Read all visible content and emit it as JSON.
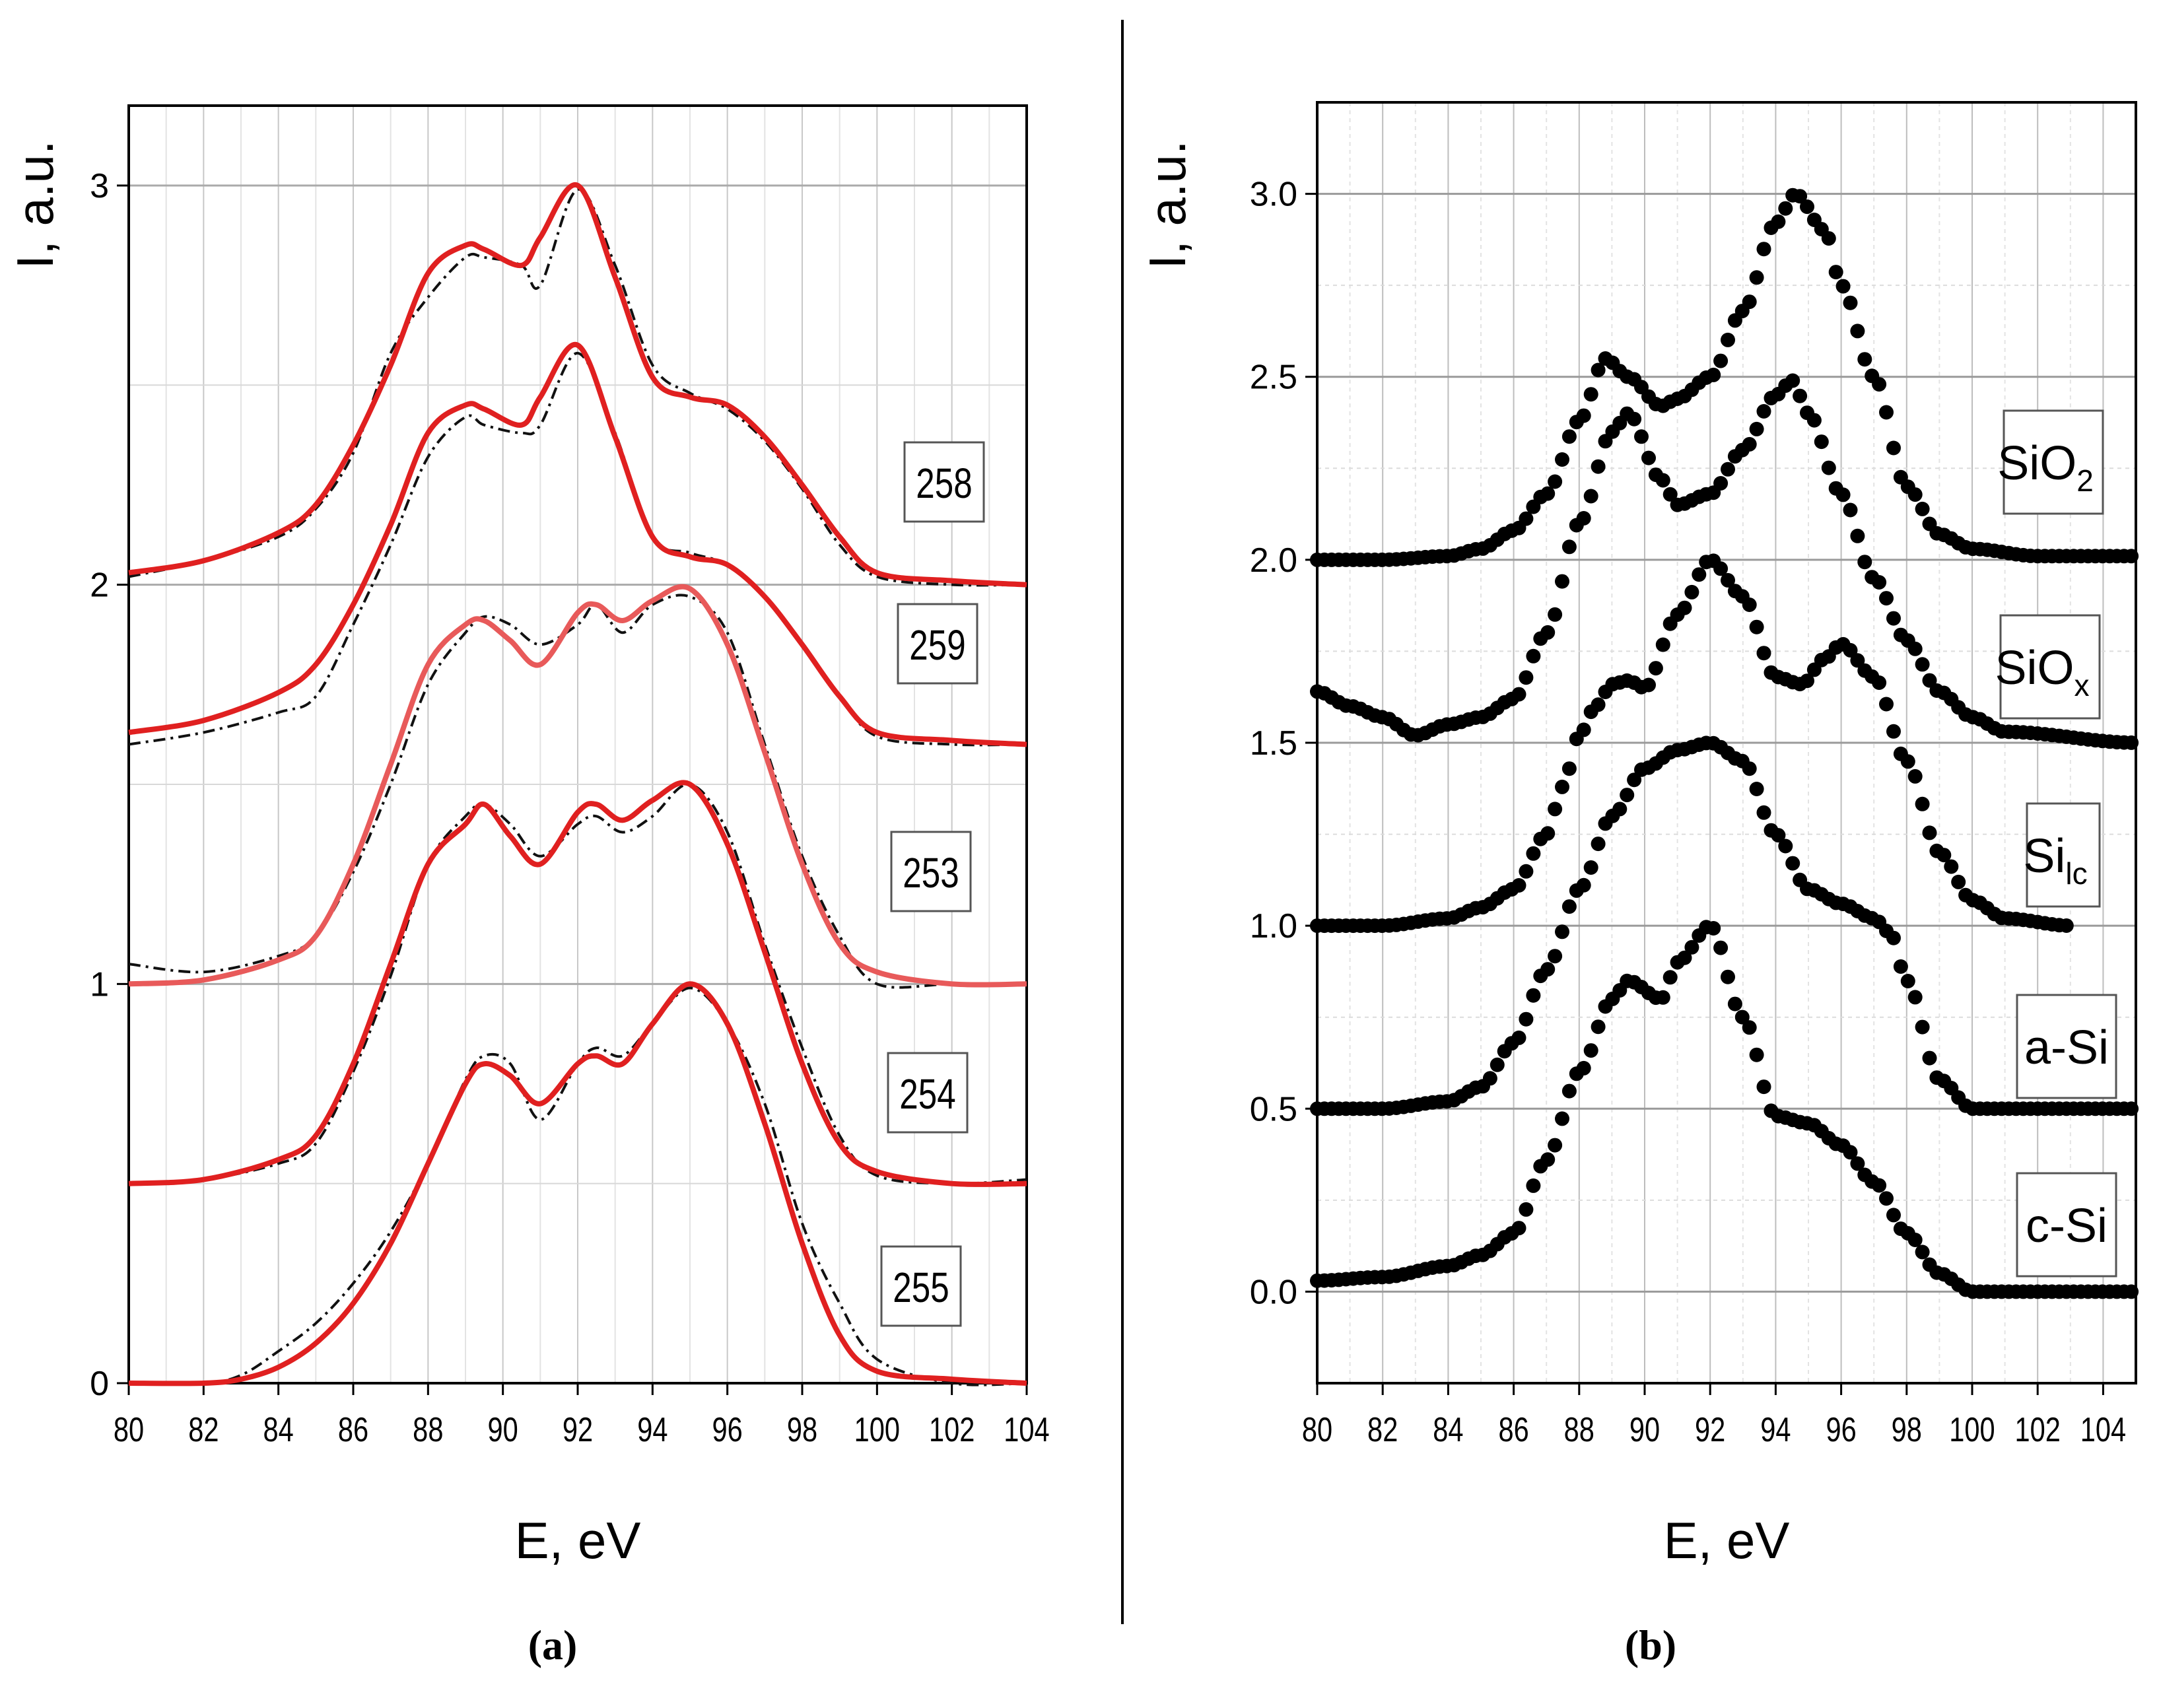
{
  "colors": {
    "fit": "#e02020",
    "fit_light": "#e85a5a",
    "exp": "#111111",
    "ref": "#000000",
    "grid": "#c8c8c8",
    "axis": "#000000"
  },
  "chart_data": [
    {
      "panel": "a",
      "type": "line",
      "xlabel": "E, eV",
      "ylabel": "I, a.u.",
      "xlim": [
        80,
        104
      ],
      "ylim": [
        0,
        3.2
      ],
      "xticks": [
        "80",
        "82",
        "84",
        "86",
        "88",
        "90",
        "92",
        "94",
        "96",
        "98",
        "100",
        "102",
        "104"
      ],
      "yticks": [
        "0",
        "1",
        "2",
        "3"
      ],
      "grid": true,
      "legend": "labels in boxes at right of each curve",
      "series": [
        {
          "name": "258",
          "offset": 2.0,
          "x": [
            80,
            82,
            84,
            85,
            86,
            87,
            88,
            89,
            89.5,
            90.5,
            91,
            92,
            93,
            94,
            95,
            96,
            97,
            98,
            99,
            100,
            102,
            104
          ],
          "fit": [
            0.03,
            0.06,
            0.13,
            0.2,
            0.35,
            0.55,
            0.78,
            0.85,
            0.84,
            0.8,
            0.87,
            1.0,
            0.77,
            0.52,
            0.47,
            0.45,
            0.37,
            0.25,
            0.12,
            0.03,
            0.01,
            0.0
          ],
          "exp": [
            0.02,
            0.06,
            0.12,
            0.19,
            0.33,
            0.58,
            0.72,
            0.82,
            0.82,
            0.8,
            0.75,
            0.99,
            0.8,
            0.55,
            0.48,
            0.44,
            0.36,
            0.24,
            0.1,
            0.02,
            0.0,
            0.0
          ]
        },
        {
          "name": "259",
          "offset": 1.6,
          "x": [
            80,
            82,
            84,
            85,
            86,
            87,
            88,
            89,
            89.5,
            90.5,
            91,
            92,
            93,
            94,
            95,
            96,
            97,
            98,
            99,
            100,
            102,
            104
          ],
          "fit": [
            0.03,
            0.06,
            0.13,
            0.2,
            0.35,
            0.55,
            0.78,
            0.85,
            0.84,
            0.8,
            0.87,
            1.0,
            0.77,
            0.52,
            0.47,
            0.45,
            0.37,
            0.25,
            0.12,
            0.03,
            0.01,
            0.0
          ],
          "exp": [
            0.0,
            0.03,
            0.08,
            0.12,
            0.3,
            0.5,
            0.72,
            0.82,
            0.8,
            0.78,
            0.8,
            0.98,
            0.78,
            0.52,
            0.48,
            0.45,
            0.37,
            0.25,
            0.12,
            0.02,
            0.0,
            0.0
          ]
        },
        {
          "name": "253",
          "offset": 1.0,
          "x": [
            80,
            82,
            84,
            85,
            86,
            87,
            88,
            89,
            89.5,
            90.2,
            91,
            92,
            92.5,
            93.2,
            94,
            95,
            96,
            97,
            98,
            99,
            100,
            102,
            104
          ],
          "fit": [
            0.0,
            0.01,
            0.06,
            0.12,
            0.3,
            0.55,
            0.8,
            0.9,
            0.91,
            0.86,
            0.8,
            0.93,
            0.95,
            0.91,
            0.96,
            0.99,
            0.85,
            0.58,
            0.3,
            0.1,
            0.03,
            0.0,
            0.0
          ],
          "exp": [
            0.05,
            0.03,
            0.07,
            0.12,
            0.28,
            0.5,
            0.75,
            0.88,
            0.92,
            0.9,
            0.85,
            0.9,
            0.95,
            0.88,
            0.95,
            0.97,
            0.88,
            0.6,
            0.32,
            0.12,
            0.0,
            0.0,
            0.0
          ]
        },
        {
          "name": "254",
          "offset": 0.5,
          "x": [
            80,
            82,
            84,
            85,
            86,
            87,
            88,
            89,
            89.5,
            90.2,
            91,
            92,
            92.5,
            93.2,
            94,
            95,
            96,
            97,
            98,
            99,
            100,
            102,
            104
          ],
          "fit": [
            0.0,
            0.01,
            0.06,
            0.12,
            0.3,
            0.55,
            0.8,
            0.9,
            0.95,
            0.87,
            0.8,
            0.93,
            0.95,
            0.91,
            0.96,
            1.0,
            0.85,
            0.58,
            0.3,
            0.1,
            0.03,
            0.0,
            0.0
          ],
          "exp": [
            0.0,
            0.01,
            0.05,
            0.1,
            0.28,
            0.52,
            0.8,
            0.92,
            0.95,
            0.9,
            0.82,
            0.9,
            0.92,
            0.88,
            0.92,
            1.0,
            0.88,
            0.6,
            0.34,
            0.12,
            0.02,
            0.0,
            0.01
          ]
        },
        {
          "name": "255",
          "offset": 0.0,
          "x": [
            80,
            82,
            83,
            84,
            85,
            86,
            87,
            88,
            89,
            89.5,
            90.2,
            91,
            92,
            92.5,
            93.2,
            94,
            95,
            96,
            97,
            98,
            99,
            100,
            102,
            104
          ],
          "fit": [
            0.0,
            0.0,
            0.01,
            0.04,
            0.1,
            0.2,
            0.35,
            0.55,
            0.75,
            0.8,
            0.77,
            0.7,
            0.8,
            0.82,
            0.8,
            0.9,
            1.0,
            0.9,
            0.65,
            0.35,
            0.12,
            0.03,
            0.01,
            0.0
          ],
          "exp": [
            0.0,
            0.0,
            0.02,
            0.08,
            0.15,
            0.25,
            0.38,
            0.55,
            0.76,
            0.82,
            0.8,
            0.66,
            0.8,
            0.84,
            0.82,
            0.9,
            0.99,
            0.9,
            0.7,
            0.4,
            0.2,
            0.06,
            0.0,
            0.0
          ]
        }
      ]
    },
    {
      "panel": "b",
      "type": "scatter",
      "xlabel": "E, eV",
      "ylabel": "I, a.u.",
      "xlim": [
        80,
        105
      ],
      "ylim": [
        -0.25,
        3.25
      ],
      "xticks": [
        "80",
        "82",
        "84",
        "86",
        "88",
        "90",
        "92",
        "94",
        "96",
        "98",
        "100",
        "102",
        "104"
      ],
      "yticks": [
        "0.0",
        "0.5",
        "1.0",
        "1.5",
        "2.0",
        "2.5",
        "3.0"
      ],
      "grid": true,
      "legend": "labels in boxes at right of each curve",
      "series": [
        {
          "name": "SiO",
          "subscript": "2",
          "offset": 2.0,
          "x": [
            80,
            82,
            84,
            85,
            86,
            87,
            88,
            88.8,
            89.5,
            90.5,
            91,
            92,
            93,
            94,
            94.6,
            95.5,
            96,
            97,
            98,
            99,
            100,
            102,
            105
          ],
          "y": [
            0.0,
            0.0,
            0.01,
            0.03,
            0.08,
            0.18,
            0.38,
            0.55,
            0.5,
            0.42,
            0.44,
            0.5,
            0.68,
            0.92,
            1.0,
            0.9,
            0.75,
            0.5,
            0.2,
            0.07,
            0.03,
            0.01,
            0.01
          ]
        },
        {
          "name": "SiO",
          "subscript": "x",
          "offset": 1.5,
          "x": [
            80,
            81,
            82,
            83,
            84,
            85,
            86,
            87,
            88,
            89,
            89.5,
            90.5,
            91,
            92,
            93,
            94,
            94.5,
            95,
            96,
            97,
            98,
            99,
            100,
            101,
            105
          ],
          "y": [
            0.14,
            0.1,
            0.07,
            0.02,
            0.05,
            0.07,
            0.12,
            0.3,
            0.6,
            0.85,
            0.9,
            0.72,
            0.65,
            0.68,
            0.8,
            0.95,
            0.99,
            0.9,
            0.68,
            0.45,
            0.28,
            0.14,
            0.07,
            0.03,
            0.0
          ]
        },
        {
          "name": "Si",
          "subscript": "lc",
          "offset": 1.0,
          "x": [
            80,
            82,
            84,
            85,
            86,
            87,
            87.5,
            88,
            88.5,
            89,
            89.5,
            90,
            91,
            92,
            93,
            94,
            94.8,
            95.5,
            96,
            97,
            98,
            99,
            100,
            101,
            103
          ],
          "y": [
            0.0,
            0.0,
            0.02,
            0.05,
            0.1,
            0.25,
            0.38,
            0.52,
            0.6,
            0.66,
            0.67,
            0.65,
            0.85,
            1.0,
            0.9,
            0.68,
            0.66,
            0.73,
            0.77,
            0.68,
            0.45,
            0.2,
            0.07,
            0.02,
            0.0
          ]
        },
        {
          "name": "a-Si",
          "subscript": "",
          "offset": 0.5,
          "x": [
            80,
            82,
            84,
            85,
            86,
            87,
            88,
            89,
            90,
            91,
            92,
            93,
            94,
            95,
            96,
            97,
            97.5,
            98,
            99,
            100,
            101,
            105
          ],
          "y": [
            0.0,
            0.0,
            0.02,
            0.06,
            0.18,
            0.38,
            0.6,
            0.8,
            0.93,
            0.98,
            1.0,
            0.95,
            0.75,
            0.6,
            0.56,
            0.52,
            0.48,
            0.35,
            0.08,
            0.0,
            0.0,
            0.0
          ]
        },
        {
          "name": "c-Si",
          "subscript": "",
          "offset": 0.0,
          "x": [
            80,
            82,
            84,
            85,
            86,
            87,
            88,
            89,
            89.5,
            90.5,
            91,
            92,
            93,
            94,
            95,
            96,
            97,
            98,
            99,
            100,
            101,
            102,
            105
          ],
          "y": [
            0.03,
            0.04,
            0.07,
            0.1,
            0.16,
            0.36,
            0.6,
            0.8,
            0.85,
            0.8,
            0.9,
            1.0,
            0.75,
            0.48,
            0.46,
            0.4,
            0.3,
            0.16,
            0.05,
            0.0,
            0.0,
            0.0,
            0.0
          ]
        }
      ]
    }
  ],
  "captions": {
    "a": "(a)",
    "b": "(b)"
  }
}
